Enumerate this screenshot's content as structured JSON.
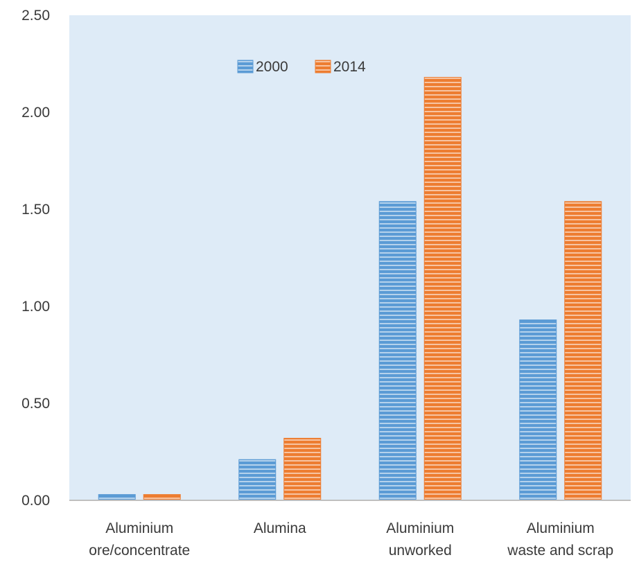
{
  "chart_data": {
    "type": "bar",
    "title": "",
    "xlabel": "",
    "ylabel": "",
    "categories": [
      [
        "Aluminium",
        "ore/concentrate"
      ],
      [
        "Alumina"
      ],
      [
        "Aluminium",
        "unworked"
      ],
      [
        "Aluminium",
        "waste and scrap"
      ]
    ],
    "series": [
      {
        "name": "2000",
        "color": "#5b9bd5",
        "values": [
          0.03,
          0.21,
          1.54,
          0.93
        ]
      },
      {
        "name": "2014",
        "color": "#ed7d31",
        "values": [
          0.03,
          0.32,
          2.18,
          1.54
        ]
      }
    ],
    "ylim": [
      0,
      2.5
    ],
    "yticks": [
      "0.00",
      "0.50",
      "1.00",
      "1.50",
      "2.00",
      "2.50"
    ],
    "grid": false,
    "legend_position": "top-center",
    "plot_background": "#deebf7"
  }
}
